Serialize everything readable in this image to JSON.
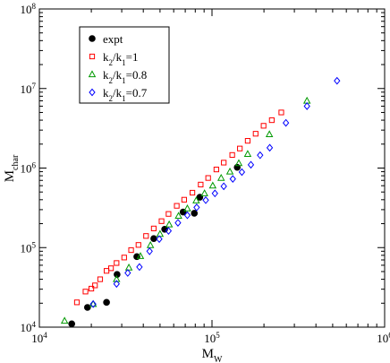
{
  "chart_data": {
    "type": "scatter",
    "title": "",
    "xlabel": "M",
    "xlabel_sub": "W",
    "ylabel": "M",
    "ylabel_sub": "char",
    "xscale": "log",
    "yscale": "log",
    "xlim": [
      10000,
      1000000
    ],
    "ylim": [
      10000,
      100000000
    ],
    "grid": false,
    "legend_position": "top-left",
    "x_ticks": [
      {
        "value": 10000,
        "base": "10",
        "exp": "4"
      },
      {
        "value": 100000,
        "base": "10",
        "exp": "5"
      },
      {
        "value": 1000000,
        "base": "10",
        "exp": "6"
      }
    ],
    "y_ticks": [
      {
        "value": 10000,
        "base": "10",
        "exp": "4"
      },
      {
        "value": 100000,
        "base": "10",
        "exp": "5"
      },
      {
        "value": 1000000,
        "base": "10",
        "exp": "6"
      },
      {
        "value": 10000000,
        "base": "10",
        "exp": "7"
      },
      {
        "value": 100000000,
        "base": "10",
        "exp": "8"
      }
    ],
    "series": [
      {
        "name": "expt",
        "legend_parts": [
          [
            "expt",
            ""
          ]
        ],
        "marker": "circle-filled",
        "color": "#000000",
        "points": [
          [
            15400,
            11000
          ],
          [
            19000,
            17700
          ],
          [
            24500,
            20500
          ],
          [
            28200,
            46000
          ],
          [
            36700,
            77000
          ],
          [
            46000,
            130000
          ],
          [
            53200,
            170000
          ],
          [
            68000,
            280000
          ],
          [
            79000,
            270000
          ],
          [
            85000,
            430000
          ],
          [
            140000,
            1020000
          ]
        ]
      },
      {
        "name": "k2/k1=1",
        "legend_parts": [
          [
            "k",
            "2"
          ],
          [
            "/k",
            "1"
          ],
          [
            "=1",
            ""
          ]
        ],
        "marker": "square-open",
        "color": "#ff0000",
        "points": [
          [
            16500,
            20500
          ],
          [
            18500,
            28000
          ],
          [
            20000,
            30500
          ],
          [
            21000,
            33500
          ],
          [
            22500,
            40000
          ],
          [
            24500,
            51000
          ],
          [
            26000,
            55000
          ],
          [
            28000,
            64000
          ],
          [
            31000,
            75000
          ],
          [
            34000,
            93000
          ],
          [
            37500,
            108000
          ],
          [
            41500,
            140000
          ],
          [
            46000,
            174000
          ],
          [
            51000,
            215000
          ],
          [
            56000,
            265000
          ],
          [
            62500,
            335000
          ],
          [
            69000,
            400000
          ],
          [
            77000,
            490000
          ],
          [
            86000,
            620000
          ],
          [
            95000,
            750000
          ],
          [
            106000,
            960000
          ],
          [
            117000,
            1170000
          ],
          [
            131000,
            1460000
          ],
          [
            145000,
            1760000
          ],
          [
            161000,
            2200000
          ],
          [
            179000,
            2700000
          ],
          [
            199000,
            3400000
          ],
          [
            222000,
            4000000
          ],
          [
            252000,
            5000000
          ]
        ]
      },
      {
        "name": "k2/k1=0.8",
        "legend_parts": [
          [
            "k",
            "2"
          ],
          [
            "/k",
            "1"
          ],
          [
            "=0.8",
            ""
          ]
        ],
        "marker": "triangle-open",
        "color": "#009900",
        "points": [
          [
            14000,
            12000
          ],
          [
            20500,
            19500
          ],
          [
            28000,
            40000
          ],
          [
            33000,
            56000
          ],
          [
            38500,
            78000
          ],
          [
            44000,
            107000
          ],
          [
            50000,
            148000
          ],
          [
            56500,
            195000
          ],
          [
            64000,
            250000
          ],
          [
            72000,
            310000
          ],
          [
            81000,
            390000
          ],
          [
            90500,
            480000
          ],
          [
            101000,
            600000
          ],
          [
            113000,
            750000
          ],
          [
            127000,
            900000
          ],
          [
            143000,
            1150000
          ],
          [
            161000,
            1500000
          ],
          [
            215000,
            2650000
          ],
          [
            355000,
            7000000
          ]
        ]
      },
      {
        "name": "k2/k1=0.7",
        "legend_parts": [
          [
            "k",
            "2"
          ],
          [
            "/k",
            "1"
          ],
          [
            "=0.7",
            ""
          ]
        ],
        "marker": "diamond-open",
        "color": "#0000ff",
        "points": [
          [
            20500,
            19500
          ],
          [
            28000,
            35000
          ],
          [
            32500,
            48000
          ],
          [
            38000,
            57000
          ],
          [
            43500,
            90000
          ],
          [
            49500,
            128000
          ],
          [
            56000,
            162000
          ],
          [
            63500,
            205000
          ],
          [
            72000,
            255000
          ],
          [
            81500,
            320000
          ],
          [
            92000,
            395000
          ],
          [
            104000,
            480000
          ],
          [
            117000,
            590000
          ],
          [
            132000,
            730000
          ],
          [
            149000,
            890000
          ],
          [
            168000,
            1100000
          ],
          [
            190000,
            1450000
          ],
          [
            216000,
            1800000
          ],
          [
            268000,
            3700000
          ],
          [
            355000,
            6000000
          ],
          [
            530000,
            12500000
          ]
        ]
      }
    ]
  }
}
